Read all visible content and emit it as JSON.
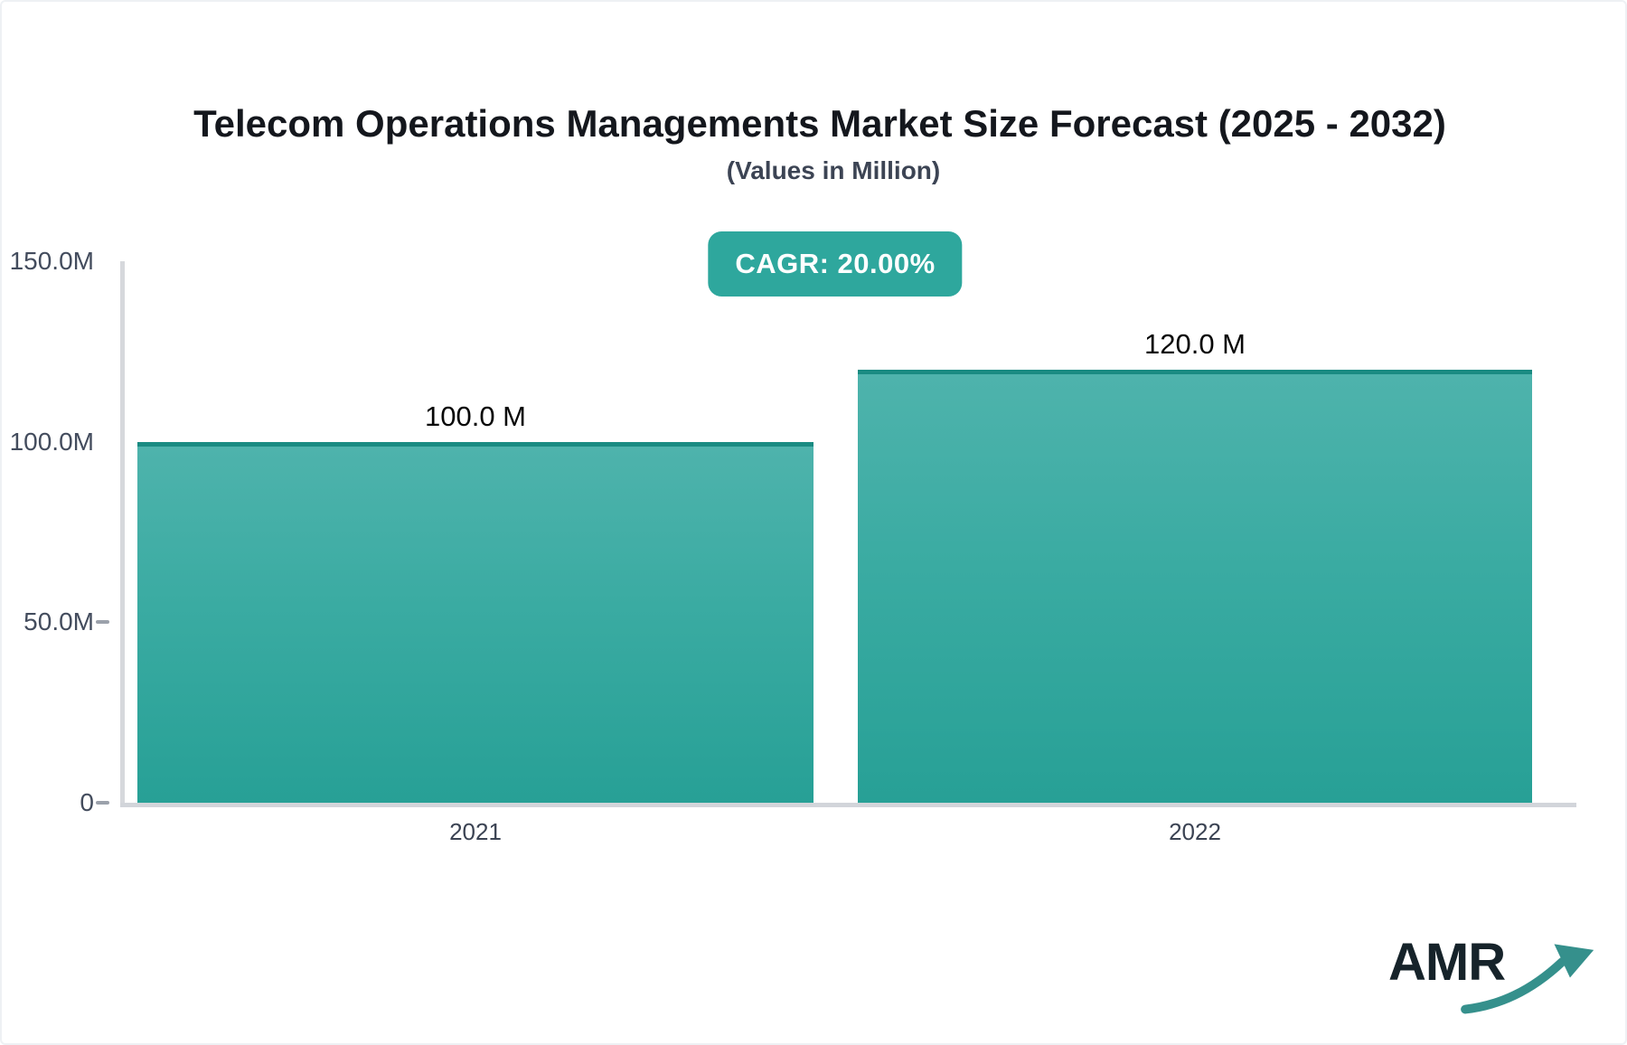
{
  "header": {
    "title": "Telecom Operations Managements Market Size Forecast (2025 - 2032)",
    "subtitle": "(Values in Million)",
    "cagr_badge": "CAGR: 20.00%"
  },
  "chart_data": {
    "type": "bar",
    "title": "Telecom Operations Managements Market Size Forecast (2025 - 2032)",
    "subtitle": "(Values in Million)",
    "unit": "Million",
    "cagr": "20.00%",
    "categories": [
      "2021",
      "2022"
    ],
    "values": [
      100.0,
      120.0
    ],
    "value_labels": [
      "100.0 M",
      "120.0 M"
    ],
    "ylim": [
      0,
      150
    ],
    "yticks": [
      {
        "label": "150.0M",
        "value": 150,
        "dash": false
      },
      {
        "label": "100.0M",
        "value": 100,
        "dash": false
      },
      {
        "label": "50.0M",
        "value": 50,
        "dash": true
      },
      {
        "label": "0",
        "value": 0,
        "dash": true
      }
    ],
    "grid": false,
    "legend": false,
    "bar_color_top": "#4eb3ac",
    "bar_color_bottom": "#27a096",
    "bar_cap_color": "#1a8b82"
  },
  "colors": {
    "accent_teal": "#2ea79d",
    "axis_line": "#d6d8dc",
    "tick_text": "#434c5d",
    "title_text": "#14171d",
    "logo_text": "#16232a",
    "logo_arrow": "#35908c"
  },
  "logo": {
    "text": "AMR",
    "arrow_icon": "trend-up-arrow-icon"
  }
}
